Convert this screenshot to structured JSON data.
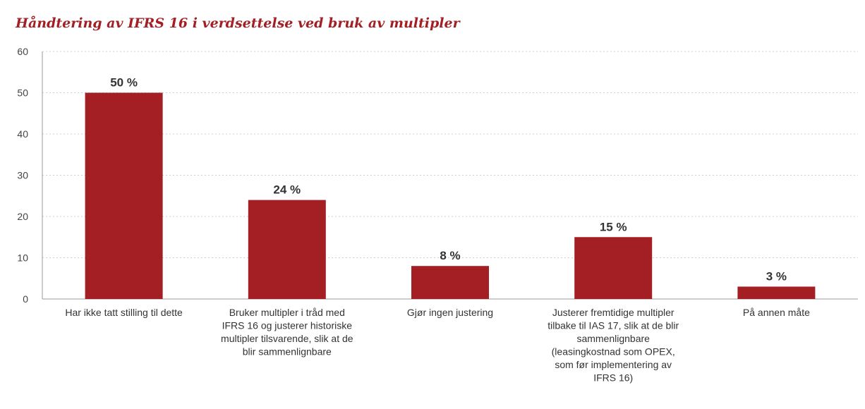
{
  "chart_data": {
    "type": "bar",
    "title": "Håndtering av IFRS 16 i verdsettelse ved bruk av multipler",
    "xlabel": "",
    "ylabel": "",
    "ylim": [
      0,
      60
    ],
    "yticks": [
      0,
      10,
      20,
      30,
      40,
      50,
      60
    ],
    "grid": true,
    "bar_color": "#a31f24",
    "categories": [
      [
        "Har ikke tatt stilling til dette"
      ],
      [
        "Bruker multipler i tråd med",
        "IFRS 16 og justerer historiske",
        "multipler tilsvarende, slik at de",
        "blir sammenlignbare"
      ],
      [
        "Gjør ingen justering"
      ],
      [
        "Justerer fremtidige multipler",
        "tilbake til IAS 17, slik at de blir",
        "sammenlignbare",
        "(leasingkostnad som OPEX,",
        "som før implementering av",
        "IFRS 16)"
      ],
      [
        "På annen måte"
      ]
    ],
    "values": [
      50,
      24,
      8,
      15,
      3
    ],
    "data_labels": [
      "50 %",
      "24 %",
      "8 %",
      "15 %",
      "3 %"
    ]
  }
}
